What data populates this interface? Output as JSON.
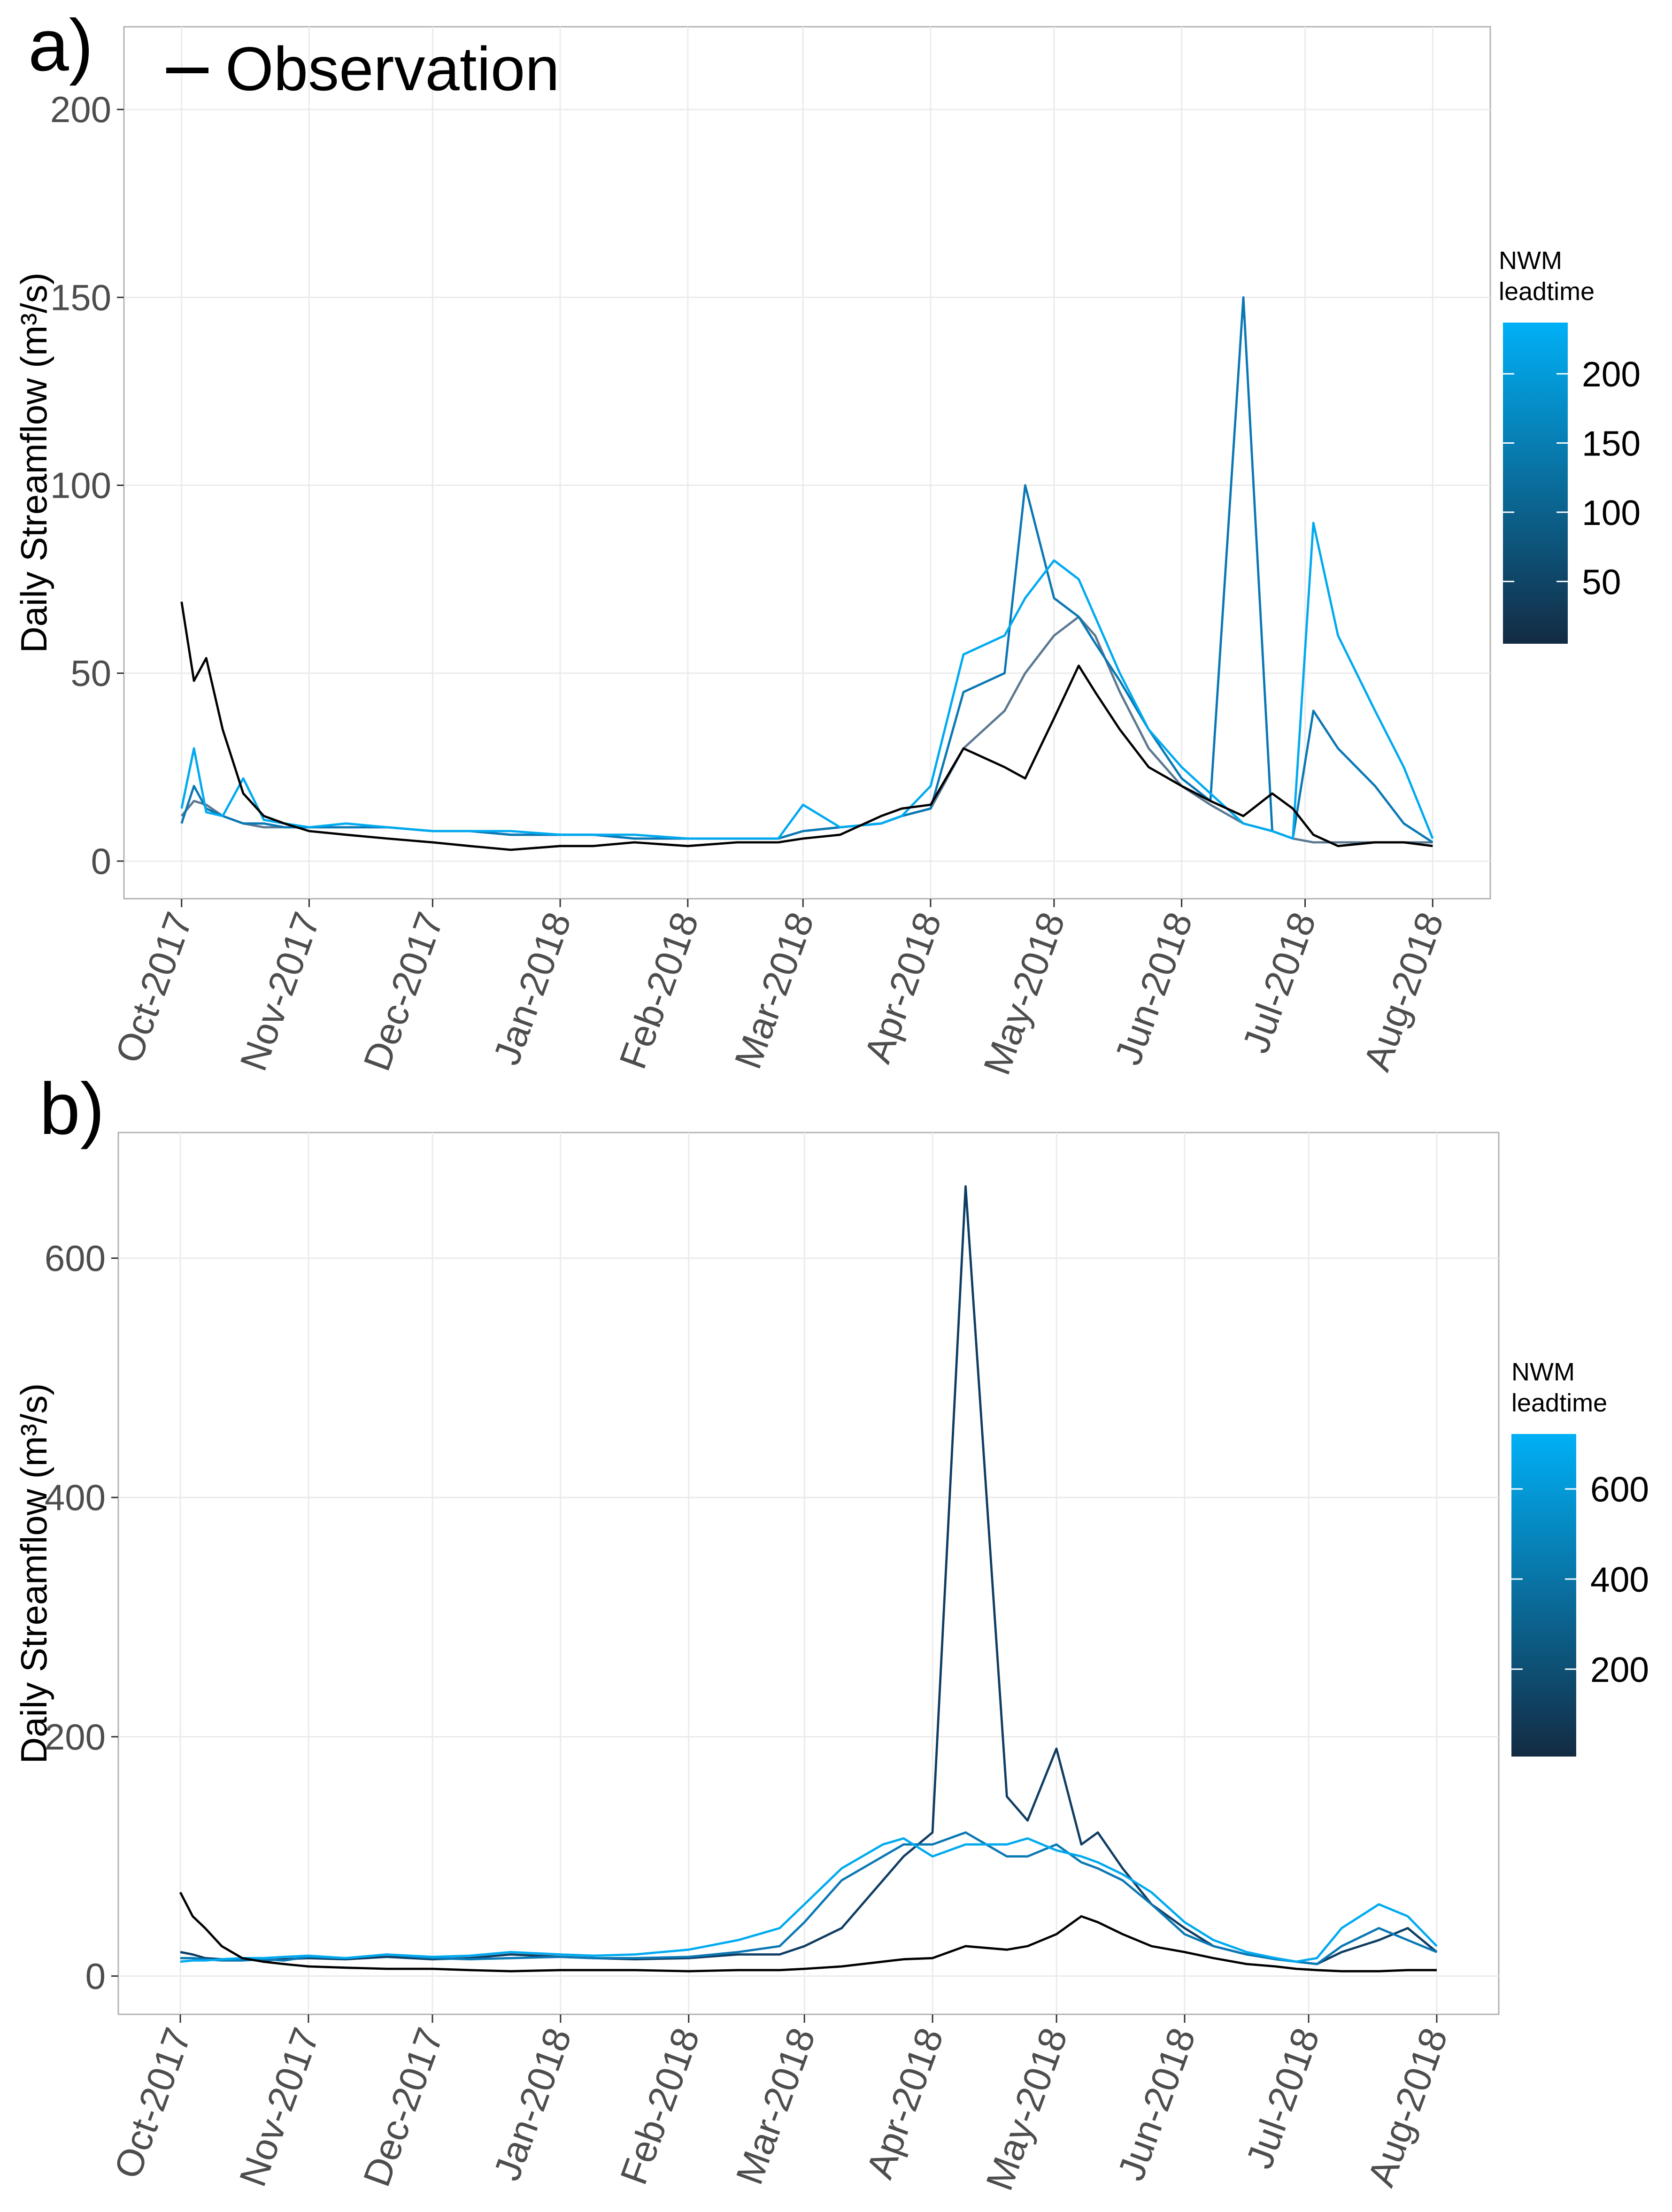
{
  "chart_data": [
    {
      "type": "line",
      "panel_label": "a)",
      "ylabel": "Daily Streamflow (m³/s)",
      "x": [
        0,
        3,
        6,
        10,
        15,
        20,
        25,
        31,
        40,
        50,
        61,
        70,
        80,
        92,
        100,
        110,
        123,
        135,
        145,
        151,
        160,
        170,
        175,
        182,
        190,
        200,
        205,
        212,
        218,
        222,
        228,
        235,
        243,
        250,
        258,
        265,
        270,
        275,
        281,
        290,
        297,
        304
      ],
      "series": [
        {
          "color": "#5b7891",
          "values": [
            12,
            16,
            15,
            12,
            10,
            9,
            9,
            9,
            9,
            9,
            8,
            8,
            7,
            7,
            7,
            6,
            6,
            6,
            6,
            8,
            9,
            10,
            12,
            14,
            30,
            40,
            50,
            60,
            65,
            60,
            45,
            30,
            20,
            15,
            10,
            8,
            6,
            5,
            5,
            5,
            5,
            5
          ]
        },
        {
          "color": "#0a78b4",
          "values": [
            10,
            20,
            14,
            12,
            10,
            10,
            9,
            9,
            9,
            9,
            8,
            8,
            7,
            7,
            7,
            6,
            6,
            6,
            6,
            8,
            9,
            10,
            12,
            14,
            45,
            50,
            100,
            70,
            65,
            58,
            48,
            35,
            22,
            16,
            150,
            8,
            6,
            40,
            30,
            20,
            10,
            5
          ]
        },
        {
          "color": "#00aaf0",
          "values": [
            14,
            30,
            13,
            12,
            22,
            11,
            10,
            9,
            10,
            9,
            8,
            8,
            8,
            7,
            7,
            7,
            6,
            6,
            6,
            15,
            9,
            10,
            12,
            20,
            55,
            60,
            70,
            80,
            75,
            65,
            50,
            35,
            25,
            18,
            10,
            8,
            6,
            90,
            60,
            40,
            25,
            6
          ]
        },
        {
          "name": "Observation",
          "color": "#000000",
          "values": [
            69,
            48,
            54,
            35,
            18,
            12,
            10,
            8,
            7,
            6,
            5,
            4,
            3,
            4,
            4,
            5,
            4,
            5,
            5,
            6,
            7,
            12,
            14,
            15,
            30,
            25,
            22,
            38,
            52,
            45,
            35,
            25,
            20,
            16,
            12,
            18,
            14,
            7,
            4,
            5,
            5,
            4
          ]
        }
      ],
      "xlim": [
        -14,
        318
      ],
      "xticks": [
        {
          "value": 0,
          "label": "Oct-2017"
        },
        {
          "value": 31,
          "label": "Nov-2017"
        },
        {
          "value": 61,
          "label": "Dec-2017"
        },
        {
          "value": 92,
          "label": "Jan-2018"
        },
        {
          "value": 123,
          "label": "Feb-2018"
        },
        {
          "value": 151,
          "label": "Mar-2018"
        },
        {
          "value": 182,
          "label": "Apr-2018"
        },
        {
          "value": 212,
          "label": "May-2018"
        },
        {
          "value": 243,
          "label": "Jun-2018"
        },
        {
          "value": 273,
          "label": "Jul-2018"
        },
        {
          "value": 304,
          "label": "Aug-2018"
        }
      ],
      "ylim": [
        -10,
        222
      ],
      "yticks": [
        0,
        50,
        100,
        150,
        200
      ],
      "grid": true,
      "legend": "top-left",
      "colorbar": {
        "title": "NWM leadtime",
        "lim": [
          5,
          237
        ],
        "ticks": [
          50,
          100,
          150,
          200
        ],
        "colors": [
          "#132b43",
          "#00b0f6"
        ]
      }
    },
    {
      "type": "line",
      "panel_label": "b)",
      "ylabel": "Daily Streamflow (m³/s)",
      "x": [
        0,
        3,
        6,
        10,
        15,
        20,
        25,
        31,
        40,
        50,
        61,
        70,
        80,
        92,
        100,
        110,
        123,
        135,
        145,
        151,
        160,
        170,
        175,
        182,
        190,
        200,
        205,
        212,
        218,
        222,
        228,
        235,
        243,
        250,
        258,
        265,
        270,
        275,
        281,
        290,
        297,
        304
      ],
      "series": [
        {
          "color": "#0f3d63",
          "values": [
            20,
            18,
            15,
            14,
            14,
            13,
            14,
            15,
            14,
            16,
            14,
            15,
            18,
            16,
            15,
            14,
            15,
            18,
            18,
            25,
            40,
            80,
            100,
            120,
            660,
            150,
            130,
            190,
            110,
            120,
            90,
            60,
            40,
            25,
            18,
            15,
            12,
            10,
            20,
            30,
            40,
            20
          ]
        },
        {
          "color": "#0a78b4",
          "values": [
            15,
            15,
            14,
            13,
            13,
            14,
            13,
            16,
            15,
            18,
            15,
            14,
            15,
            16,
            15,
            15,
            16,
            20,
            25,
            45,
            80,
            100,
            110,
            110,
            120,
            100,
            100,
            110,
            95,
            90,
            80,
            60,
            35,
            25,
            18,
            14,
            12,
            10,
            25,
            40,
            30,
            20
          ]
        },
        {
          "color": "#00aaf0",
          "values": [
            12,
            13,
            13,
            14,
            15,
            15,
            16,
            17,
            15,
            18,
            16,
            17,
            20,
            18,
            17,
            18,
            22,
            30,
            40,
            60,
            90,
            110,
            115,
            100,
            110,
            110,
            115,
            105,
            100,
            95,
            85,
            70,
            45,
            30,
            20,
            15,
            12,
            15,
            40,
            60,
            50,
            25
          ]
        },
        {
          "color": "#000000",
          "values": [
            70,
            50,
            40,
            25,
            15,
            12,
            10,
            8,
            7,
            6,
            6,
            5,
            4,
            5,
            5,
            5,
            4,
            5,
            5,
            6,
            8,
            12,
            14,
            15,
            25,
            22,
            25,
            35,
            50,
            45,
            35,
            25,
            20,
            15,
            10,
            8,
            6,
            5,
            4,
            4,
            5,
            5
          ]
        }
      ],
      "xlim": [
        -15,
        319
      ],
      "xticks": [
        {
          "value": 0,
          "label": "Oct-2017"
        },
        {
          "value": 31,
          "label": "Nov-2017"
        },
        {
          "value": 61,
          "label": "Dec-2017"
        },
        {
          "value": 92,
          "label": "Jan-2018"
        },
        {
          "value": 123,
          "label": "Feb-2018"
        },
        {
          "value": 151,
          "label": "Mar-2018"
        },
        {
          "value": 182,
          "label": "Apr-2018"
        },
        {
          "value": 212,
          "label": "May-2018"
        },
        {
          "value": 243,
          "label": "Jun-2018"
        },
        {
          "value": 273,
          "label": "Jul-2018"
        },
        {
          "value": 304,
          "label": "Aug-2018"
        }
      ],
      "ylim": [
        -32,
        705
      ],
      "yticks": [
        0,
        200,
        400,
        600
      ],
      "grid": true,
      "colorbar": {
        "title": "NWM leadtime",
        "lim": [
          6,
          722
        ],
        "ticks": [
          200,
          400,
          600
        ],
        "colors": [
          "#132b43",
          "#00b0f6"
        ]
      }
    }
  ]
}
